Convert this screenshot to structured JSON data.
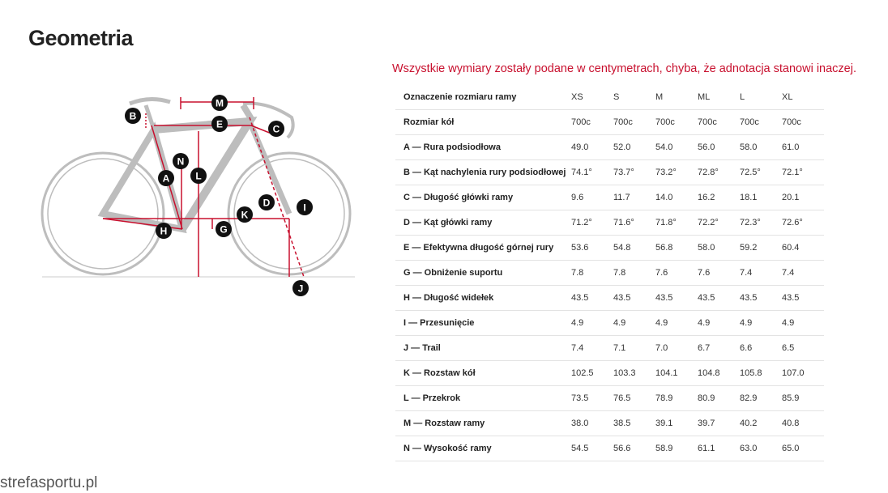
{
  "title": "Geometria",
  "note": "Wszystkie wymiary zostały podane w centymetrach, chyba, że adnotacja stanowi inaczej.",
  "diagram": {
    "labels": [
      "B",
      "M",
      "E",
      "C",
      "N",
      "A",
      "L",
      "D",
      "I",
      "K",
      "H",
      "G",
      "J"
    ]
  },
  "table": {
    "header": [
      "Oznaczenie rozmiaru ramy",
      "XS",
      "S",
      "M",
      "ML",
      "L",
      "XL"
    ],
    "rows": [
      [
        "Rozmiar kół",
        "700c",
        "700c",
        "700c",
        "700c",
        "700c",
        "700c"
      ],
      [
        "A — Rura podsiodłowa",
        "49.0",
        "52.0",
        "54.0",
        "56.0",
        "58.0",
        "61.0"
      ],
      [
        "B — Kąt nachylenia rury podsiodłowej",
        "74.1°",
        "73.7°",
        "73.2°",
        "72.8°",
        "72.5°",
        "72.1°"
      ],
      [
        "C — Długość główki ramy",
        "9.6",
        "11.7",
        "14.0",
        "16.2",
        "18.1",
        "20.1"
      ],
      [
        "D — Kąt główki ramy",
        "71.2°",
        "71.6°",
        "71.8°",
        "72.2°",
        "72.3°",
        "72.6°"
      ],
      [
        "E — Efektywna długość górnej rury",
        "53.6",
        "54.8",
        "56.8",
        "58.0",
        "59.2",
        "60.4"
      ],
      [
        "G — Obniżenie suportu",
        "7.8",
        "7.8",
        "7.6",
        "7.6",
        "7.4",
        "7.4"
      ],
      [
        "H — Długość widełek",
        "43.5",
        "43.5",
        "43.5",
        "43.5",
        "43.5",
        "43.5"
      ],
      [
        "I — Przesunięcie",
        "4.9",
        "4.9",
        "4.9",
        "4.9",
        "4.9",
        "4.9"
      ],
      [
        "J — Trail",
        "7.4",
        "7.1",
        "7.0",
        "6.7",
        "6.6",
        "6.5"
      ],
      [
        "K — Rozstaw kół",
        "102.5",
        "103.3",
        "104.1",
        "104.8",
        "105.8",
        "107.0"
      ],
      [
        "L — Przekrok",
        "73.5",
        "76.5",
        "78.9",
        "80.9",
        "82.9",
        "85.9"
      ],
      [
        "M — Rozstaw ramy",
        "38.0",
        "38.5",
        "39.1",
        "39.7",
        "40.2",
        "40.8"
      ],
      [
        "N — Wysokość ramy",
        "54.5",
        "56.6",
        "58.9",
        "61.1",
        "63.0",
        "65.0"
      ]
    ]
  },
  "watermark": "strefasportu.pl"
}
